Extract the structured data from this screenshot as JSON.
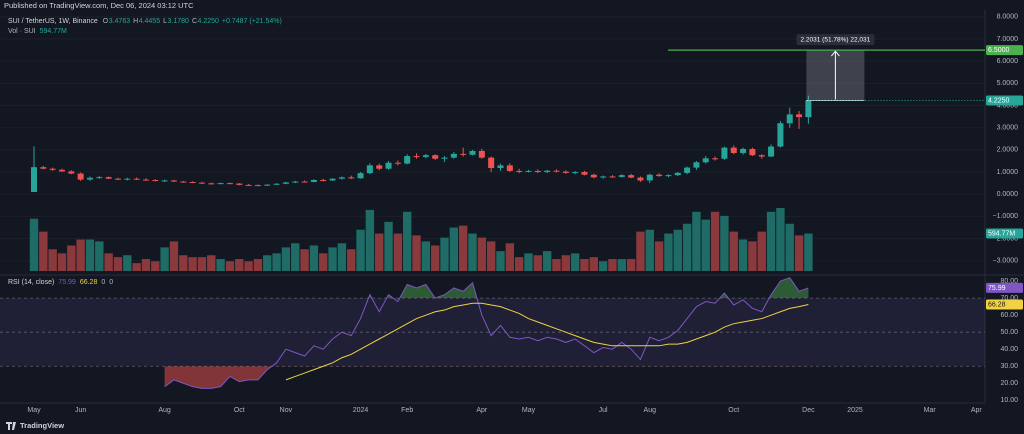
{
  "header": {
    "published": "Published on TradingView.com, Dec 06, 2024 03:12 UTC",
    "symbol": "SUI / TetherUS, 1W, Binance",
    "ohlc_keys": [
      "O",
      "H",
      "L",
      "C"
    ],
    "change": "+0.7487 (+21.54%)",
    "volume_title": "Vol · SUI"
  },
  "footer": {
    "brand": "TradingView"
  },
  "chart_data": [
    {
      "type": "candlestick",
      "categories": [
        "May",
        null,
        null,
        null,
        null,
        "Jun",
        null,
        null,
        null,
        null,
        null,
        null,
        null,
        null,
        "Aug",
        null,
        null,
        null,
        null,
        null,
        null,
        null,
        "Oct",
        null,
        null,
        null,
        null,
        "Nov",
        null,
        null,
        null,
        null,
        null,
        null,
        null,
        "2024",
        null,
        null,
        null,
        null,
        "Feb",
        null,
        null,
        null,
        null,
        null,
        null,
        null,
        "Apr",
        null,
        null,
        null,
        null,
        "May",
        null,
        null,
        null,
        null,
        null,
        null,
        null,
        "Jul",
        null,
        null,
        null,
        null,
        "Aug",
        null,
        null,
        null,
        null,
        null,
        null,
        null,
        null,
        "Oct",
        null,
        null,
        null,
        null,
        null,
        null,
        null,
        "Dec",
        null,
        null,
        null,
        null,
        "2025",
        null,
        null,
        null,
        null,
        null,
        null,
        null,
        "Mar",
        null,
        null,
        null,
        null,
        "Apr",
        null
      ],
      "open": [
        0.1,
        1.22,
        1.15,
        1.1,
        1.03,
        0.93,
        0.66,
        0.74,
        0.77,
        0.7,
        0.68,
        0.7,
        0.66,
        0.64,
        0.6,
        0.62,
        0.57,
        0.55,
        0.52,
        0.49,
        0.47,
        0.5,
        0.48,
        0.42,
        0.41,
        0.39,
        0.43,
        0.47,
        0.53,
        0.57,
        0.55,
        0.64,
        0.62,
        0.7,
        0.76,
        0.72,
        0.95,
        1.3,
        1.15,
        1.42,
        1.38,
        1.72,
        1.68,
        1.76,
        1.6,
        1.65,
        1.82,
        1.78,
        1.95,
        1.65,
        1.18,
        1.3,
        1.05,
        1.02,
        1.05,
        1.0,
        1.06,
        1.02,
        0.96,
        1.0,
        0.88,
        0.76,
        0.8,
        0.78,
        0.86,
        0.75,
        0.62,
        0.88,
        0.82,
        0.86,
        0.96,
        1.2,
        1.44,
        1.62,
        1.6,
        2.1,
        1.86,
        2.04,
        1.76,
        1.7,
        2.15,
        3.2,
        3.6,
        3.4763,
        null,
        null,
        null,
        null,
        null,
        null,
        null,
        null,
        null,
        null,
        null,
        null,
        null,
        null,
        null,
        null,
        null,
        null,
        null
      ],
      "high": [
        2.16,
        1.28,
        1.2,
        1.15,
        1.08,
        0.98,
        0.8,
        0.82,
        0.8,
        0.75,
        0.74,
        0.75,
        0.72,
        0.68,
        0.66,
        0.65,
        0.6,
        0.58,
        0.56,
        0.52,
        0.52,
        0.53,
        0.5,
        0.46,
        0.44,
        0.45,
        0.5,
        0.56,
        0.6,
        0.62,
        0.68,
        0.7,
        0.72,
        0.8,
        0.84,
        1.0,
        1.4,
        1.38,
        1.5,
        1.52,
        1.8,
        1.85,
        1.82,
        1.8,
        1.72,
        1.9,
        2.1,
        2.0,
        2.05,
        1.7,
        1.38,
        1.4,
        1.15,
        1.1,
        1.12,
        1.1,
        1.12,
        1.08,
        1.04,
        1.05,
        0.92,
        0.84,
        0.86,
        0.9,
        0.92,
        0.8,
        0.92,
        0.95,
        0.9,
        1.0,
        1.25,
        1.5,
        1.72,
        1.7,
        2.15,
        2.2,
        2.1,
        2.1,
        1.8,
        2.25,
        3.3,
        3.9,
        3.75,
        4.4455,
        null,
        null,
        null,
        null,
        null,
        null,
        null,
        null,
        null,
        null,
        null,
        null,
        null,
        null,
        null,
        null,
        null,
        null,
        null
      ],
      "low": [
        0.1,
        1.12,
        1.05,
        1.0,
        0.9,
        0.6,
        0.6,
        0.7,
        0.68,
        0.64,
        0.62,
        0.64,
        0.6,
        0.58,
        0.55,
        0.55,
        0.52,
        0.5,
        0.47,
        0.44,
        0.45,
        0.45,
        0.4,
        0.38,
        0.37,
        0.37,
        0.42,
        0.45,
        0.5,
        0.53,
        0.54,
        0.58,
        0.6,
        0.66,
        0.68,
        0.7,
        0.9,
        1.08,
        1.1,
        1.3,
        1.35,
        1.6,
        1.62,
        1.55,
        1.45,
        1.6,
        1.7,
        1.75,
        1.6,
        1.0,
        1.05,
        1.0,
        0.95,
        0.98,
        0.95,
        0.95,
        0.98,
        0.92,
        0.9,
        0.85,
        0.72,
        0.7,
        0.74,
        0.75,
        0.72,
        0.55,
        0.5,
        0.78,
        0.76,
        0.82,
        0.9,
        1.1,
        1.38,
        1.52,
        1.55,
        1.8,
        1.78,
        1.72,
        1.6,
        1.68,
        2.1,
        3.0,
        2.95,
        3.178,
        null,
        null,
        null,
        null,
        null,
        null,
        null,
        null,
        null,
        null,
        null,
        null,
        null,
        null,
        null,
        null,
        null,
        null,
        null
      ],
      "close": [
        1.22,
        1.15,
        1.1,
        1.03,
        0.93,
        0.66,
        0.74,
        0.77,
        0.7,
        0.68,
        0.7,
        0.66,
        0.64,
        0.6,
        0.62,
        0.57,
        0.55,
        0.52,
        0.49,
        0.47,
        0.5,
        0.48,
        0.42,
        0.41,
        0.39,
        0.43,
        0.47,
        0.53,
        0.57,
        0.55,
        0.64,
        0.62,
        0.7,
        0.76,
        0.72,
        0.95,
        1.3,
        1.15,
        1.42,
        1.38,
        1.72,
        1.68,
        1.76,
        1.6,
        1.65,
        1.82,
        1.78,
        1.95,
        1.65,
        1.18,
        1.3,
        1.05,
        1.02,
        1.05,
        1.0,
        1.06,
        1.02,
        0.96,
        1.0,
        0.88,
        0.76,
        0.8,
        0.78,
        0.86,
        0.75,
        0.62,
        0.88,
        0.82,
        0.86,
        0.96,
        1.2,
        1.44,
        1.62,
        1.6,
        2.1,
        1.86,
        2.04,
        1.76,
        1.7,
        2.15,
        3.2,
        3.6,
        3.48,
        4.225,
        null,
        null,
        null,
        null,
        null,
        null,
        null,
        null,
        null,
        null,
        null,
        null,
        null,
        null,
        null,
        null,
        null,
        null,
        null
      ],
      "last_labels": {
        "open": "3.4763",
        "high": "4.4455",
        "low": "3.1780",
        "close": "4.2250"
      },
      "up_color": "#26a69a",
      "down_color": "#ef5350",
      "ylim": [
        -3.6,
        8.4
      ],
      "yticks": [
        {
          "value": 8,
          "label": "8.0000"
        },
        {
          "value": 7,
          "label": "7.0000"
        },
        {
          "value": 6,
          "label": "6.0000"
        },
        {
          "value": 5,
          "label": "5.0000"
        },
        {
          "value": 4,
          "label": "4.0000"
        },
        {
          "value": 3,
          "label": "3.0000"
        },
        {
          "value": 2,
          "label": "2.0000"
        },
        {
          "value": 1,
          "label": "1.0000"
        },
        {
          "value": 0,
          "label": "0.0000"
        },
        {
          "value": -1,
          "label": "−1.0000"
        },
        {
          "value": -2,
          "label": "−2.0000"
        },
        {
          "value": -3,
          "label": "−3.0000"
        }
      ],
      "grid": true,
      "target": {
        "value": 6.5,
        "label": "6.5000",
        "color": "#4caf50"
      },
      "measure_label": "2.2031 (51.78%) 22,031"
    },
    {
      "type": "bar",
      "values": [
        830,
        625,
        345,
        280,
        405,
        500,
        500,
        470,
        280,
        220,
        250,
        125,
        190,
        155,
        375,
        470,
        250,
        220,
        220,
        250,
        190,
        155,
        190,
        155,
        190,
        250,
        280,
        375,
        440,
        345,
        405,
        280,
        375,
        440,
        345,
        655,
        970,
        595,
        780,
        595,
        940,
        565,
        470,
        405,
        530,
        690,
        720,
        595,
        530,
        470,
        315,
        440,
        220,
        280,
        250,
        315,
        190,
        250,
        280,
        190,
        220,
        155,
        190,
        190,
        190,
        625,
        655,
        470,
        595,
        655,
        750,
        940,
        815,
        940,
        875,
        625,
        500,
        470,
        625,
        940,
        1000,
        750,
        565,
        594.77,
        null,
        null,
        null,
        null,
        null,
        null,
        null,
        null,
        null,
        null,
        null,
        null,
        null,
        null,
        null,
        null,
        null,
        null,
        null
      ],
      "value_labels": [
        null,
        null,
        null,
        null,
        null,
        null,
        null,
        null,
        null,
        null,
        null,
        null,
        null,
        null,
        null,
        null,
        null,
        null,
        null,
        null,
        null,
        null,
        null,
        null,
        null,
        null,
        null,
        null,
        null,
        null,
        null,
        null,
        null,
        null,
        null,
        null,
        null,
        null,
        null,
        null,
        null,
        null,
        null,
        null,
        null,
        null,
        null,
        null,
        null,
        null,
        null,
        null,
        null,
        null,
        null,
        null,
        null,
        null,
        null,
        null,
        null,
        null,
        null,
        null,
        null,
        null,
        null,
        null,
        null,
        null,
        null,
        null,
        null,
        null,
        null,
        null,
        null,
        null,
        null,
        null,
        null,
        null,
        null,
        "594.77M",
        null,
        null,
        null,
        null,
        null,
        null,
        null,
        null,
        null,
        null,
        null,
        null,
        null,
        null,
        null,
        null,
        null,
        null,
        null
      ],
      "up_color": "#1f6b66",
      "down_color": "#8a3a3c"
    },
    {
      "type": "line",
      "title": "RSI (14, close)",
      "series": [
        {
          "color": "#7e57c2",
          "values": [
            null,
            null,
            null,
            null,
            null,
            null,
            null,
            null,
            null,
            null,
            null,
            null,
            null,
            null,
            18,
            22,
            20,
            18,
            17,
            17,
            18,
            24,
            21,
            22,
            22,
            28,
            32,
            40,
            38,
            36,
            42,
            40,
            46,
            50,
            48,
            58,
            72,
            62,
            72,
            68,
            78,
            76,
            78,
            70,
            72,
            76,
            74,
            79,
            60,
            48,
            54,
            47,
            46,
            47,
            45,
            47,
            46,
            44,
            46,
            42,
            38,
            41,
            40,
            44,
            40,
            34,
            47,
            45,
            47,
            51,
            58,
            65,
            68,
            67,
            73,
            66,
            69,
            64,
            62,
            72,
            80,
            82,
            74,
            75.99,
            null,
            null,
            null,
            null,
            null,
            null,
            null,
            null,
            null,
            null,
            null,
            null,
            null,
            null,
            null,
            null,
            null,
            null,
            null
          ]
        },
        {
          "color": "#f0d243",
          "values": [
            null,
            null,
            null,
            null,
            null,
            null,
            null,
            null,
            null,
            null,
            null,
            null,
            null,
            null,
            null,
            null,
            null,
            null,
            null,
            null,
            null,
            null,
            null,
            null,
            null,
            null,
            null,
            22,
            24,
            26,
            28,
            30,
            32,
            35,
            37,
            40,
            43,
            46,
            49,
            52,
            55,
            58,
            60,
            62,
            63,
            65,
            66,
            67,
            67,
            66,
            65,
            63,
            61,
            58,
            56,
            54,
            52,
            50,
            48,
            46,
            44,
            43,
            42,
            42,
            42,
            42,
            42,
            42,
            43,
            43,
            44,
            46,
            48,
            50,
            53,
            55,
            56,
            57,
            58,
            60,
            62,
            64,
            65,
            66.28,
            null,
            null,
            null,
            null,
            null,
            null,
            null,
            null,
            null,
            null,
            null,
            null,
            null,
            null,
            null,
            null,
            null,
            null,
            null
          ]
        }
      ],
      "legend_extras": [
        0,
        0
      ],
      "ylim": [
        9,
        83
      ],
      "yticks": [
        {
          "value": 80,
          "label": "80.00"
        },
        {
          "value": 70,
          "label": "70.00"
        },
        {
          "value": 60,
          "label": "60.00"
        },
        {
          "value": 50,
          "label": "50.00"
        },
        {
          "value": 40,
          "label": "40.00"
        },
        {
          "value": 30,
          "label": "30.00"
        },
        {
          "value": 20,
          "label": "20.00"
        },
        {
          "value": 10,
          "label": "10.00"
        }
      ],
      "bands": [
        70,
        50,
        30
      ]
    }
  ]
}
